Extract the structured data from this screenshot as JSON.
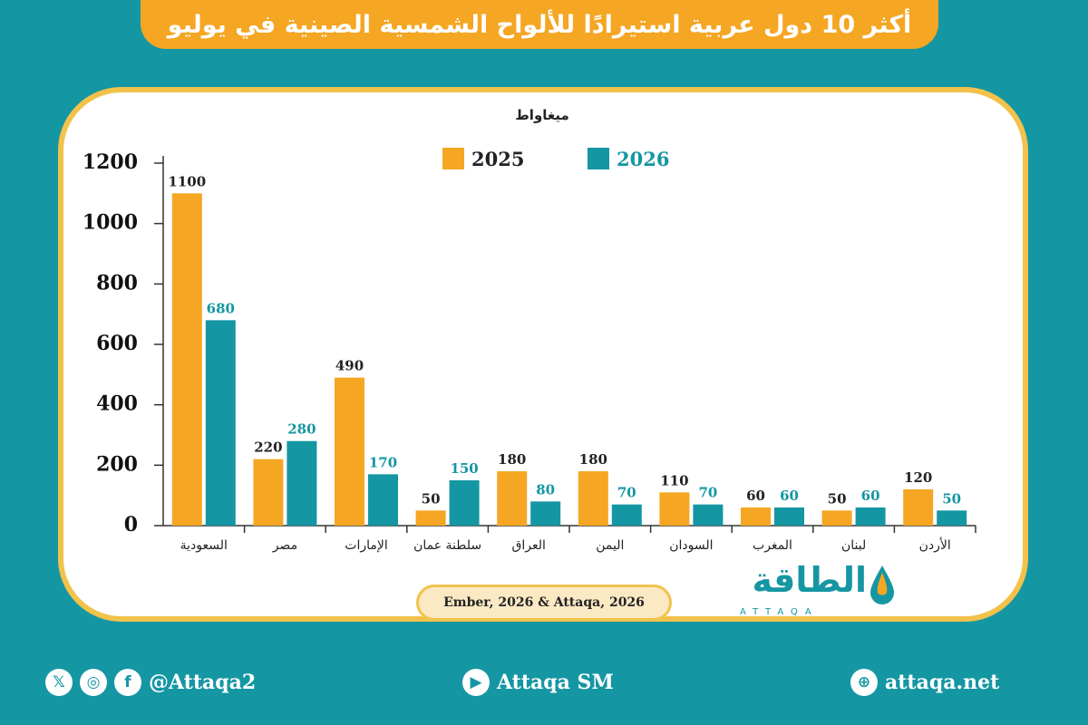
{
  "header": {
    "title": "أكثر 10 دول عربية استيرادًا للألواح الشمسية الصينية في يوليو"
  },
  "chart_data": {
    "type": "bar",
    "unit_label": "ميغاواط",
    "categories": [
      "السعودية",
      "مصر",
      "الإمارات",
      "سلطنة عمان",
      "العراق",
      "اليمن",
      "السودان",
      "المغرب",
      "لبنان",
      "الأردن"
    ],
    "series": [
      {
        "name": "2025",
        "color": "#f5a623",
        "values": [
          1100,
          220,
          490,
          50,
          180,
          180,
          110,
          60,
          50,
          120
        ]
      },
      {
        "name": "2026",
        "color": "#1596a3",
        "values": [
          680,
          280,
          170,
          150,
          80,
          70,
          70,
          60,
          60,
          50
        ]
      }
    ],
    "y_ticks": [
      "0",
      "200",
      "400",
      "600",
      "800",
      "1000",
      "1200"
    ],
    "ylim": [
      0,
      1200
    ],
    "grid": false,
    "legend_position": "top"
  },
  "source": "Ember, 2026 & Attaqa, 2026",
  "logo": {
    "arabic": "الطاقة",
    "english": "ATTAQA"
  },
  "footer": {
    "social_handle": "@Attaqa2",
    "youtube": "Attaqa SM",
    "website": "attaqa.net",
    "icons": [
      "x-icon",
      "instagram-icon",
      "facebook-icon",
      "youtube-icon",
      "globe-icon"
    ]
  },
  "colors": {
    "background": "#1596a3",
    "accent": "#f5a623",
    "card_border": "#f2c24b"
  }
}
